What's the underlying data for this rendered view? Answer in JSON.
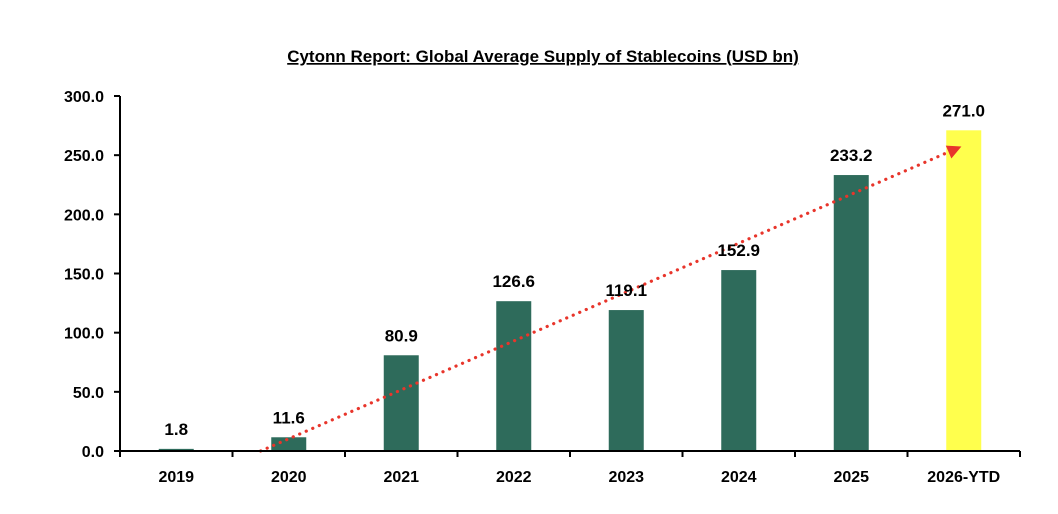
{
  "chart_data": {
    "type": "bar",
    "title": "Cytonn Report: Global Average Supply of Stablecoins (USD bn)",
    "xlabel": "",
    "ylabel": "",
    "categories": [
      "2019",
      "2020",
      "2021",
      "2022",
      "2023",
      "2024",
      "2025",
      "2026-YTD"
    ],
    "values": [
      1.8,
      11.6,
      80.9,
      126.6,
      119.1,
      152.9,
      233.2,
      271.0
    ],
    "value_labels": [
      "1.8",
      "11.6",
      "80.9",
      "126.6",
      "119.1",
      "152.9",
      "233.2",
      "271.0"
    ],
    "ylim": [
      0,
      300
    ],
    "yticks": [
      0,
      50,
      100,
      150,
      200,
      250,
      300
    ],
    "ytick_labels": [
      "0.0",
      "50.0",
      "100.0",
      "150.0",
      "200.0",
      "250.0",
      "300.0"
    ],
    "grid": false,
    "legend": "none",
    "bar_colors": [
      "#2e6b5b",
      "#2e6b5b",
      "#2e6b5b",
      "#2e6b5b",
      "#2e6b5b",
      "#2e6b5b",
      "#2e6b5b",
      "#ffff4d"
    ],
    "trendline": {
      "type": "linear",
      "style": "dotted-arrow",
      "color": "#e8352b",
      "start": {
        "category_index": 0.75,
        "value": 0
      },
      "end": {
        "category_index": 7,
        "value": 256
      }
    }
  }
}
